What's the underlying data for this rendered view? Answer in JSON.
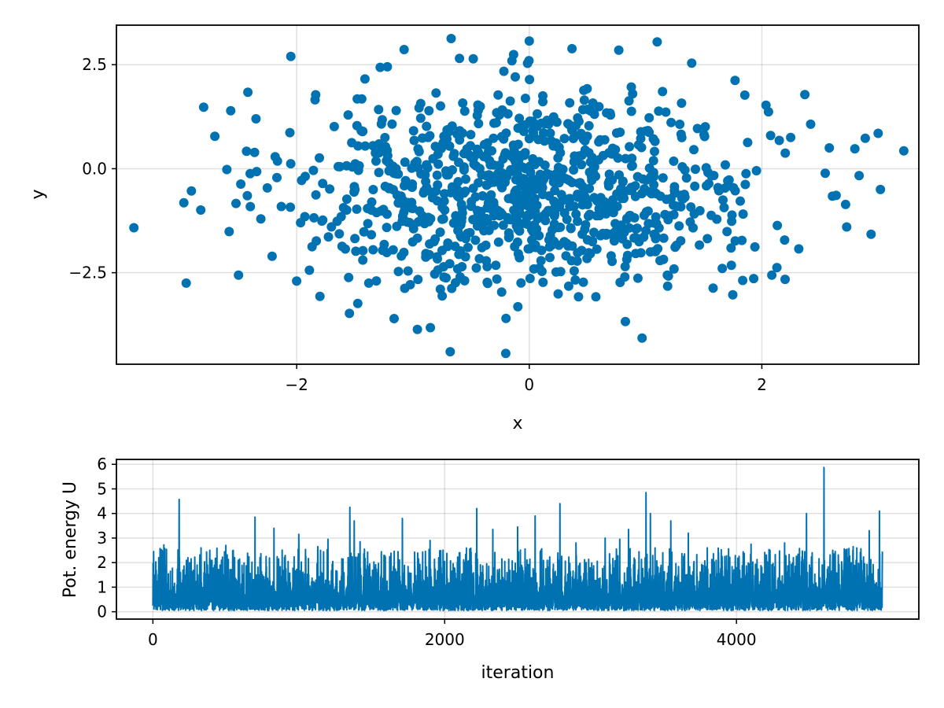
{
  "colors": {
    "series": "#0072b2",
    "background": "#ffffff",
    "axis": "#000000"
  },
  "chart_data": [
    {
      "name": "scatter-samples",
      "type": "scatter",
      "xlabel": "x",
      "ylabel": "y",
      "xlim": [
        -3.55,
        3.35
      ],
      "ylim": [
        -4.7,
        3.45
      ],
      "xticks": [
        -2,
        0,
        2
      ],
      "yticks": [
        -2.5,
        0.0,
        2.5
      ],
      "xtick_labels": [
        "−2",
        "0",
        "2"
      ],
      "ytick_labels": [
        "−2.5",
        "0.0",
        "2.5"
      ],
      "grid": true,
      "n_points": 1000,
      "distribution": {
        "x_mean": 0.0,
        "x_sd": 1.0,
        "y_mean": -0.5,
        "y_sd": 1.2
      },
      "highlighted_points": [
        [
          -3.4,
          -1.42
        ],
        [
          -2.97,
          -0.82
        ],
        [
          -2.95,
          -2.75
        ],
        [
          -2.8,
          1.48
        ],
        [
          -2.6,
          -0.02
        ],
        [
          -2.5,
          -2.56
        ],
        [
          -2.4,
          -0.12
        ],
        [
          -2.35,
          1.2
        ],
        [
          -2.05,
          2.7
        ],
        [
          -1.8,
          -3.07
        ],
        [
          -1.22,
          2.45
        ],
        [
          -0.68,
          -4.4
        ],
        [
          -0.85,
          -3.82
        ],
        [
          -0.2,
          -3.6
        ],
        [
          0.97,
          -4.07
        ],
        [
          1.1,
          3.05
        ],
        [
          0.0,
          3.07
        ],
        [
          0.77,
          2.85
        ],
        [
          -0.6,
          2.65
        ],
        [
          1.77,
          2.12
        ],
        [
          2.37,
          1.78
        ],
        [
          3.0,
          0.85
        ],
        [
          3.02,
          -0.5
        ],
        [
          2.73,
          -1.4
        ],
        [
          2.72,
          -0.86
        ],
        [
          2.8,
          0.48
        ],
        [
          2.58,
          0.5
        ],
        [
          2.2,
          -2.66
        ],
        [
          1.93,
          -2.64
        ],
        [
          1.94,
          -1.88
        ],
        [
          1.75,
          -3.03
        ],
        [
          2.42,
          1.07
        ],
        [
          2.15,
          0.68
        ],
        [
          -2.0,
          -2.7
        ],
        [
          -1.38,
          -2.75
        ]
      ]
    },
    {
      "name": "energy-trace",
      "type": "line",
      "xlabel": "iteration",
      "ylabel": "Pot. energy U",
      "xlim": [
        -250,
        5250
      ],
      "ylim": [
        -0.3,
        6.2
      ],
      "xticks": [
        0,
        2000,
        4000
      ],
      "yticks": [
        0,
        1,
        2,
        3,
        4,
        5,
        6
      ],
      "xtick_labels": [
        "0",
        "2000",
        "4000"
      ],
      "ytick_labels": [
        "0",
        "1",
        "2",
        "3",
        "4",
        "5",
        "6"
      ],
      "grid": true,
      "n_iterations": 5000,
      "baseline_mean": 0.75,
      "spikes": [
        [
          5,
          2.45
        ],
        [
          40,
          2.2
        ],
        [
          75,
          2.72
        ],
        [
          120,
          1.65
        ],
        [
          180,
          4.57
        ],
        [
          240,
          2.2
        ],
        [
          330,
          2.6
        ],
        [
          390,
          2.5
        ],
        [
          500,
          2.7
        ],
        [
          560,
          2.2
        ],
        [
          700,
          3.85
        ],
        [
          830,
          3.4
        ],
        [
          1000,
          3.15
        ],
        [
          1130,
          2.65
        ],
        [
          1200,
          2.95
        ],
        [
          1350,
          4.25
        ],
        [
          1380,
          3.7
        ],
        [
          1420,
          2.85
        ],
        [
          1710,
          3.8
        ],
        [
          1900,
          2.9
        ],
        [
          2000,
          2.05
        ],
        [
          2100,
          2.4
        ],
        [
          2220,
          4.2
        ],
        [
          2330,
          3.35
        ],
        [
          2500,
          3.45
        ],
        [
          2620,
          3.9
        ],
        [
          2660,
          2.5
        ],
        [
          2790,
          4.4
        ],
        [
          2900,
          2.8
        ],
        [
          3100,
          3.0
        ],
        [
          3200,
          2.95
        ],
        [
          3260,
          3.35
        ],
        [
          3380,
          4.85
        ],
        [
          3410,
          4.0
        ],
        [
          3550,
          3.7
        ],
        [
          3670,
          3.2
        ],
        [
          3800,
          2.6
        ],
        [
          3920,
          2.25
        ],
        [
          4100,
          2.75
        ],
        [
          4230,
          2.5
        ],
        [
          4330,
          2.8
        ],
        [
          4480,
          4.0
        ],
        [
          4600,
          5.87
        ],
        [
          4660,
          2.5
        ],
        [
          4800,
          2.65
        ],
        [
          4910,
          3.3
        ],
        [
          4980,
          4.1
        ],
        [
          5000,
          2.45
        ]
      ]
    }
  ]
}
